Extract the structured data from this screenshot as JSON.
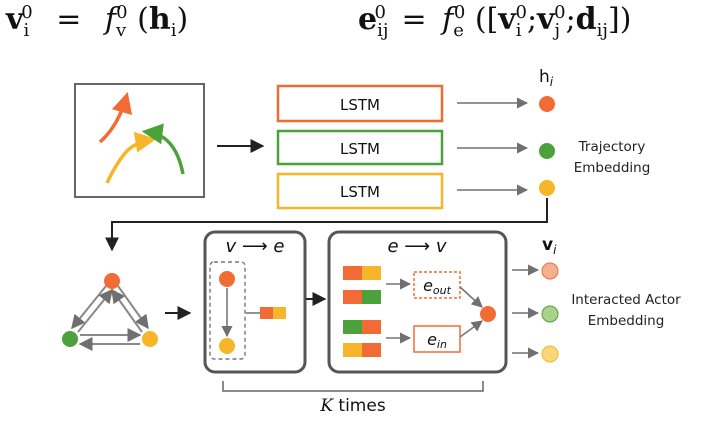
{
  "equations": {
    "node_init": {
      "lhs_base": "v",
      "lhs_sub": "i",
      "lhs_sup": "0",
      "eq": "=",
      "fn": "f",
      "fn_sub": "v",
      "fn_sup": "0",
      "arg_open": "(",
      "arg": "h",
      "arg_sub": "i",
      "arg_close": ")"
    },
    "edge_init": {
      "lhs_base": "e",
      "lhs_sub": "ij",
      "lhs_sup": "0",
      "eq": "=",
      "fn": "f",
      "fn_sub": "e",
      "fn_sup": "0",
      "open": "([",
      "v1": "v",
      "v1_sub": "i",
      "v1_sup": "0",
      "sep1": ";",
      "v2": "v",
      "v2_sub": "j",
      "v2_sup": "0",
      "sep2": ";",
      "d": "d",
      "d_sub": "ij",
      "close": "])"
    }
  },
  "encoder": {
    "lstm_labels": [
      "LSTM",
      "LSTM",
      "LSTM"
    ],
    "output_label_base": "h",
    "output_label_sub": "i",
    "side_label_line1": "Trajectory",
    "side_label_line2": "Embedding"
  },
  "interaction": {
    "v_to_e_title": "v ⟶ e",
    "e_to_v_title": "e ⟶ v",
    "e_out_base": "e",
    "e_out_sub": "out",
    "e_in_base": "e",
    "e_in_sub": "in",
    "repeat_k": "K",
    "repeat_text": " times",
    "output_label_base": "v",
    "output_label_sub": "i",
    "side_label_line1": "Interacted Actor",
    "side_label_line2": "Embedding"
  },
  "colors": {
    "orange": "#F26B35",
    "green": "#4CA23A",
    "yellow": "#F7B52A",
    "light_orange": "#F5B08F",
    "light_green": "#A9D38D",
    "light_yellow": "#F8D67A",
    "box_gray": "#555555",
    "arrow_gray": "#707070"
  }
}
